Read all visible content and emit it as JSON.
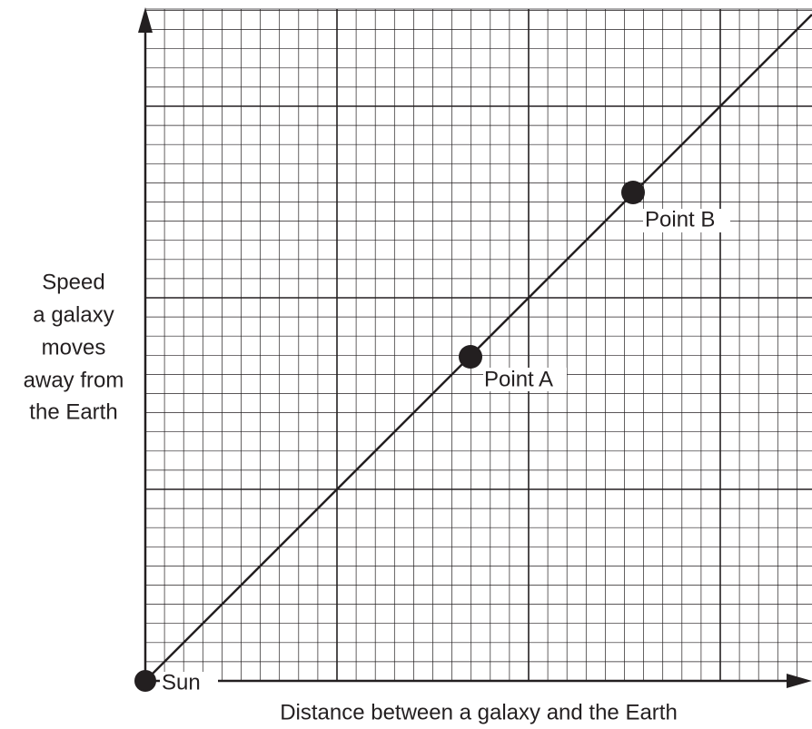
{
  "y_axis_label": [
    "Speed",
    "a galaxy",
    "moves",
    "away from",
    "the Earth"
  ],
  "x_axis_label": "Distance between a galaxy and the Earth",
  "points": [
    {
      "label": "Sun"
    },
    {
      "label": "Point A"
    },
    {
      "label": "Point B"
    }
  ]
}
